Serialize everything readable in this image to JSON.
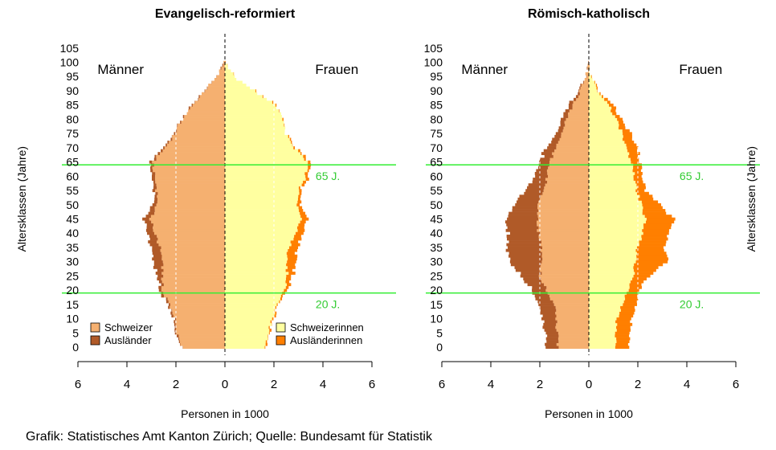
{
  "chart_data": [
    {
      "type": "population-pyramid",
      "title": "Evangelisch-reformiert",
      "left_label": "Männer",
      "right_label": "Frauen",
      "ylabel": "Altersklassen (Jahre)",
      "xlabel": "Personen in 1000",
      "xlim": [
        -6,
        6
      ],
      "xticks": [
        -6,
        -4,
        -2,
        0,
        2,
        4,
        6
      ],
      "xtick_labels": [
        "6",
        "4",
        "2",
        "0",
        "2",
        "4",
        "6"
      ],
      "ylim": [
        0,
        105
      ],
      "yticks": [
        0,
        5,
        10,
        15,
        20,
        25,
        30,
        35,
        40,
        45,
        50,
        55,
        60,
        65,
        70,
        75,
        80,
        85,
        90,
        95,
        100,
        105
      ],
      "reference_lines": [
        {
          "age": 64,
          "label": "65 J.",
          "color": "#33ee33"
        },
        {
          "age": 19,
          "label": "20 J.",
          "color": "#33ee33"
        }
      ],
      "legend_left": [
        {
          "label": "Schweizer",
          "color": "#f5b070"
        },
        {
          "label": "Ausländer",
          "color": "#b05a28"
        }
      ],
      "legend_right": [
        {
          "label": "Schweizerinnen",
          "color": "#ffffa0"
        },
        {
          "label": "Ausländerinnen",
          "color": "#ff7f00"
        }
      ],
      "men_knots": {
        "ages": [
          0,
          5,
          10,
          15,
          20,
          25,
          30,
          35,
          40,
          45,
          50,
          55,
          60,
          65,
          70,
          75,
          80,
          85,
          90,
          95,
          100
        ],
        "nationals": [
          1.75,
          1.95,
          2.05,
          2.25,
          2.55,
          2.55,
          2.55,
          2.65,
          2.85,
          3.05,
          2.75,
          2.8,
          2.85,
          2.95,
          2.45,
          2.05,
          1.75,
          1.3,
          0.85,
          0.3,
          0.05
        ],
        "foreigners": [
          0.05,
          0.05,
          0.05,
          0.05,
          0.1,
          0.2,
          0.4,
          0.35,
          0.3,
          0.25,
          0.15,
          0.1,
          0.1,
          0.1,
          0.05,
          0.02,
          0.02,
          0.02,
          0.0,
          0.0,
          0.0
        ]
      },
      "women_knots": {
        "ages": [
          0,
          5,
          10,
          15,
          20,
          25,
          30,
          35,
          40,
          45,
          50,
          55,
          60,
          65,
          70,
          75,
          80,
          85,
          90,
          95,
          100
        ],
        "nationals": [
          1.65,
          1.75,
          1.95,
          2.15,
          2.45,
          2.55,
          2.5,
          2.6,
          2.9,
          3.15,
          2.95,
          3.0,
          3.3,
          3.35,
          2.85,
          2.45,
          2.4,
          2.05,
          1.2,
          0.35,
          0.05
        ],
        "foreigners": [
          0.05,
          0.05,
          0.05,
          0.05,
          0.1,
          0.2,
          0.4,
          0.35,
          0.3,
          0.25,
          0.15,
          0.1,
          0.1,
          0.1,
          0.05,
          0.02,
          0.02,
          0.02,
          0.0,
          0.0,
          0.0
        ]
      }
    },
    {
      "type": "population-pyramid",
      "title": "Römisch-katholisch",
      "left_label": "Männer",
      "right_label": "Frauen",
      "ylabel": "Altersklassen (Jahre)",
      "xlabel": "Personen in 1000",
      "xlim": [
        -6,
        6
      ],
      "xticks": [
        -6,
        -4,
        -2,
        0,
        2,
        4,
        6
      ],
      "xtick_labels": [
        "6",
        "4",
        "2",
        "0",
        "2",
        "4",
        "6"
      ],
      "ylim": [
        0,
        105
      ],
      "yticks": [
        0,
        5,
        10,
        15,
        20,
        25,
        30,
        35,
        40,
        45,
        50,
        55,
        60,
        65,
        70,
        75,
        80,
        85,
        90,
        95,
        100,
        105
      ],
      "reference_lines": [
        {
          "age": 64,
          "label": "65 J.",
          "color": "#33ee33"
        },
        {
          "age": 19,
          "label": "20 J.",
          "color": "#33ee33"
        }
      ],
      "men_knots": {
        "ages": [
          0,
          5,
          10,
          15,
          20,
          25,
          30,
          35,
          40,
          45,
          50,
          55,
          60,
          65,
          70,
          75,
          80,
          85,
          90,
          95,
          100
        ],
        "nationals": [
          1.25,
          1.3,
          1.35,
          1.4,
          1.7,
          2.0,
          1.9,
          1.95,
          2.05,
          2.1,
          2.05,
          1.85,
          1.7,
          1.6,
          1.35,
          1.15,
          0.95,
          0.65,
          0.35,
          0.1,
          0.02
        ],
        "foreigners": [
          0.5,
          0.5,
          0.55,
          0.65,
          0.6,
          0.75,
          1.3,
          1.4,
          1.25,
          1.25,
          0.95,
          0.75,
          0.5,
          0.4,
          0.4,
          0.2,
          0.2,
          0.15,
          0.05,
          0.0,
          0.0
        ]
      },
      "women_knots": {
        "ages": [
          0,
          5,
          10,
          15,
          20,
          25,
          30,
          35,
          40,
          45,
          50,
          55,
          60,
          65,
          70,
          75,
          80,
          85,
          90,
          95,
          100
        ],
        "nationals": [
          1.05,
          1.1,
          1.15,
          1.35,
          1.6,
          1.8,
          1.9,
          1.95,
          2.2,
          2.3,
          2.15,
          1.95,
          1.85,
          1.75,
          1.5,
          1.35,
          1.15,
          0.8,
          0.35,
          0.1,
          0.02
        ],
        "foreigners": [
          0.55,
          0.55,
          0.6,
          0.55,
          0.45,
          0.65,
          1.3,
          1.1,
          1.05,
          1.15,
          0.75,
          0.4,
          0.3,
          0.35,
          0.45,
          0.35,
          0.2,
          0.15,
          0.05,
          0.0,
          0.0
        ]
      }
    }
  ],
  "caption": "Grafik: Statistisches Amt Kanton Zürich; Quelle: Bundesamt für Statistik"
}
